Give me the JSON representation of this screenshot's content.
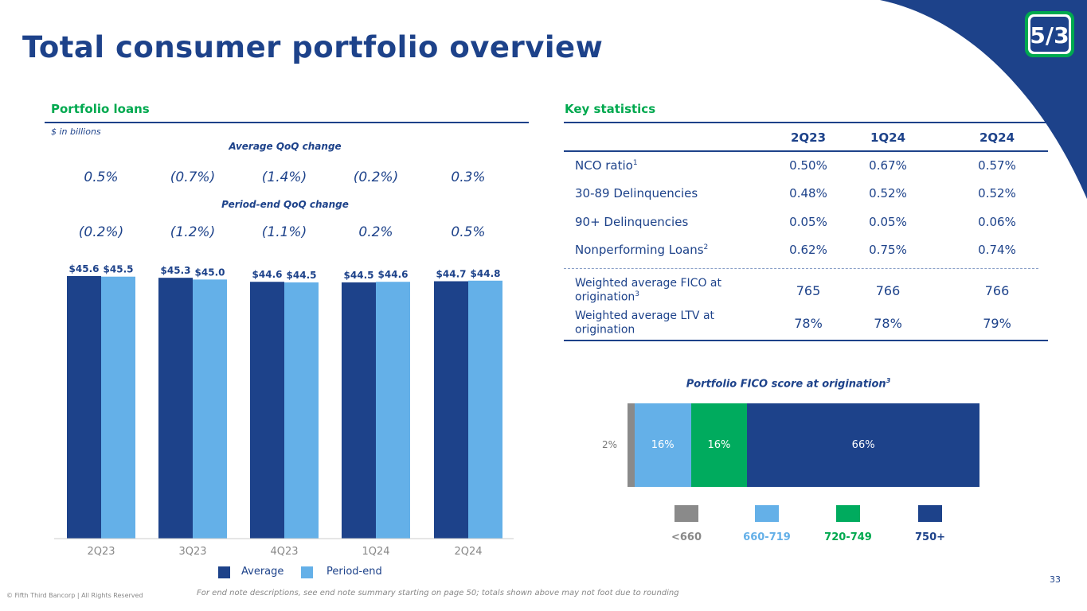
{
  "title": "Total consumer portfolio overview",
  "page_number": "33",
  "copyright": "© Fifth Third Bancorp | All Rights Reserved",
  "footnote": "For end note descriptions, see end note summary starting on page 50; totals shown above may not foot due to rounding",
  "logo_text": "5/3",
  "left": {
    "heading": "Portfolio loans",
    "unit": "$ in billions",
    "avg_label": "Average QoQ change",
    "avg_changes": [
      "0.5%",
      "(0.7%)",
      "(1.4%)",
      "(0.2%)",
      "0.3%"
    ],
    "pe_label": "Period-end QoQ change",
    "pe_changes": [
      "(0.2%)",
      "(1.2%)",
      "(1.1%)",
      "0.2%",
      "0.5%"
    ]
  },
  "chart_data": [
    {
      "type": "bar",
      "title": "Portfolio loans",
      "ylabel": "$ in billions",
      "categories": [
        "2Q23",
        "3Q23",
        "4Q23",
        "1Q24",
        "2Q24"
      ],
      "series": [
        {
          "name": "Average",
          "color": "#1d428a",
          "values": [
            45.6,
            45.3,
            44.6,
            44.5,
            44.7
          ],
          "labels": [
            "$45.6",
            "$45.3",
            "$44.6",
            "$44.5",
            "$44.7"
          ]
        },
        {
          "name": "Period-end",
          "color": "#64b0e8",
          "values": [
            45.5,
            45.0,
            44.5,
            44.6,
            44.8
          ],
          "labels": [
            "$45.5",
            "$45.0",
            "$44.5",
            "$44.6",
            "$44.8"
          ]
        }
      ],
      "ylim": [
        0,
        46
      ],
      "legend": "bottom"
    },
    {
      "type": "bar",
      "title": "Portfolio FICO score at origination",
      "superscript": "3",
      "orientation": "horizontal-stacked",
      "categories": [
        "<660",
        "660-719",
        "720-749",
        "750+"
      ],
      "values": [
        2,
        16,
        16,
        66
      ],
      "labels": [
        "2%",
        "16%",
        "16%",
        "66%"
      ],
      "colors": [
        "#8a8a8a",
        "#64b0e8",
        "#00ab5e",
        "#1d428a"
      ],
      "legend": "bottom"
    }
  ],
  "right": {
    "heading": "Key statistics",
    "columns": [
      "2Q23",
      "1Q24",
      "2Q24"
    ],
    "rows": [
      {
        "label": "NCO ratio",
        "sup": "1",
        "values": [
          "0.50%",
          "0.67%",
          "0.57%"
        ]
      },
      {
        "label": "30-89 Delinquencies",
        "sup": "",
        "values": [
          "0.48%",
          "0.52%",
          "0.52%"
        ]
      },
      {
        "label": "90+ Delinquencies",
        "sup": "",
        "values": [
          "0.05%",
          "0.05%",
          "0.06%"
        ]
      },
      {
        "label": "Nonperforming Loans",
        "sup": "2",
        "values": [
          "0.62%",
          "0.75%",
          "0.74%"
        ]
      }
    ],
    "rows2": [
      {
        "label": "Weighted average FICO at origination",
        "sup": "3",
        "values": [
          "765",
          "766",
          "766"
        ]
      },
      {
        "label": "Weighted average LTV at origination",
        "sup": "",
        "values": [
          "78%",
          "78%",
          "79%"
        ]
      }
    ]
  },
  "colors": {
    "navy": "#1d428a",
    "green": "#00a94f",
    "light": "#64b0e8"
  }
}
